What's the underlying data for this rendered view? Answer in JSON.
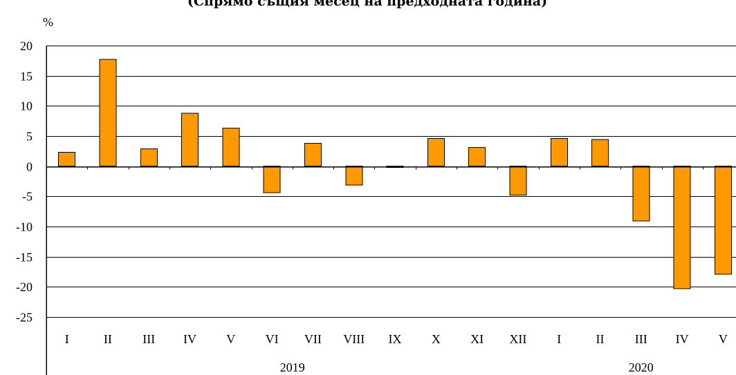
{
  "chart_data": {
    "type": "bar",
    "title": "(Спрямо същия месец на предходната година)",
    "unit_label": "%",
    "ylim": [
      -25,
      20
    ],
    "yticks": [
      20,
      15,
      10,
      5,
      0,
      -5,
      -10,
      -15,
      -20,
      -25
    ],
    "grid": true,
    "categories": [
      "I",
      "II",
      "III",
      "IV",
      "V",
      "VI",
      "VII",
      "VIII",
      "IX",
      "X",
      "XI",
      "XII",
      "I",
      "II",
      "III",
      "IV",
      "V"
    ],
    "values": [
      2.3,
      17.7,
      2.9,
      8.8,
      6.3,
      -4.4,
      3.8,
      -3.1,
      -0.2,
      4.6,
      3.1,
      -4.8,
      4.6,
      4.4,
      -9.1,
      -20.3,
      -17.9
    ],
    "groups": [
      {
        "label": "2019",
        "count": 12
      },
      {
        "label": "2020",
        "count": 5
      }
    ],
    "bar_color": "#FF9900"
  }
}
